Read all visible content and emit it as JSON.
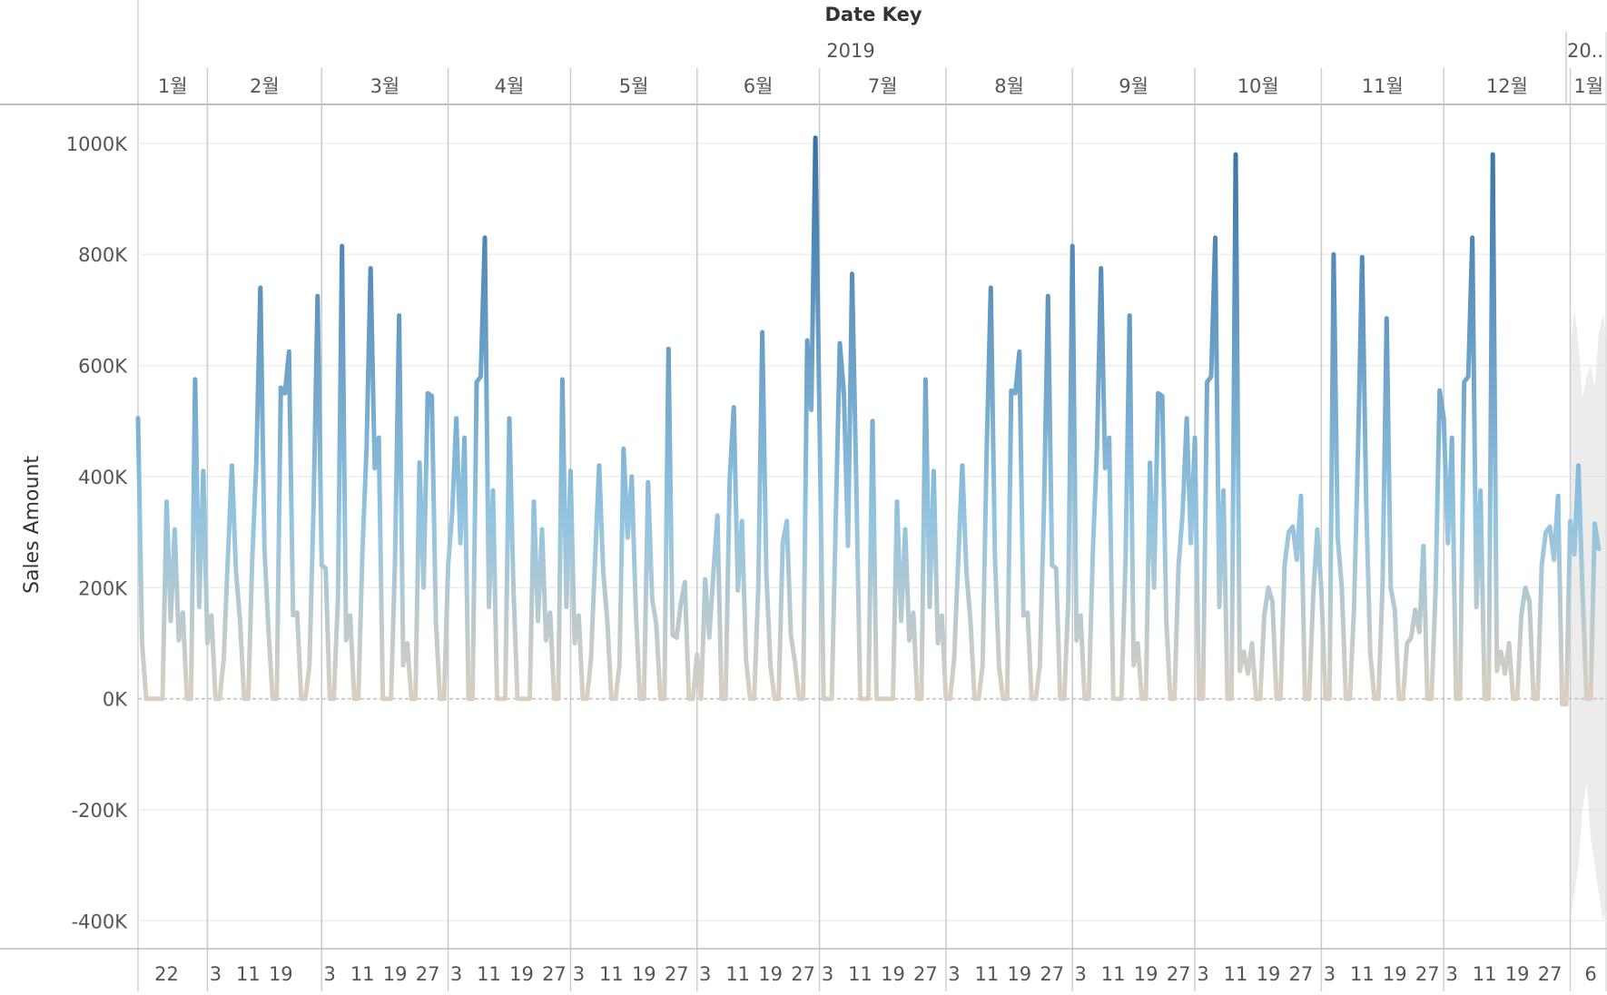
{
  "header": {
    "field_title": "Date Key",
    "year_labels": [
      "2019",
      "20.."
    ],
    "month_labels": [
      "1월",
      "2월",
      "3월",
      "4월",
      "5월",
      "6월",
      "7월",
      "8월",
      "9월",
      "10월",
      "11월",
      "12월",
      "1월"
    ]
  },
  "chart_data": {
    "type": "line",
    "title": "",
    "xlabel": "Date Key",
    "ylabel": "Sales Amount",
    "ylim": [
      -450000,
      1070000
    ],
    "y_ticks": [
      -400000,
      -200000,
      0,
      200000,
      400000,
      600000,
      800000,
      1000000
    ],
    "y_tick_labels": [
      "-400K",
      "-200K",
      "0K",
      "200K",
      "400K",
      "600K",
      "800K",
      "1000K"
    ],
    "x_start": "2019-01-15",
    "x_end": "2020-01-10",
    "month_starts": [
      "2019-02-01",
      "2019-03-01",
      "2019-04-01",
      "2019-05-01",
      "2019-06-01",
      "2019-07-01",
      "2019-08-01",
      "2019-09-01",
      "2019-10-01",
      "2019-11-01",
      "2019-12-01",
      "2020-01-01"
    ],
    "x_ticks": [
      {
        "date": "2019-01-22",
        "label": "22"
      },
      {
        "date": "2019-02-03",
        "label": "3"
      },
      {
        "date": "2019-02-11",
        "label": "11"
      },
      {
        "date": "2019-02-19",
        "label": "19"
      },
      {
        "date": "2019-03-03",
        "label": "3"
      },
      {
        "date": "2019-03-11",
        "label": "11"
      },
      {
        "date": "2019-03-19",
        "label": "19"
      },
      {
        "date": "2019-03-27",
        "label": "27"
      },
      {
        "date": "2019-04-03",
        "label": "3"
      },
      {
        "date": "2019-04-11",
        "label": "11"
      },
      {
        "date": "2019-04-19",
        "label": "19"
      },
      {
        "date": "2019-04-27",
        "label": "27"
      },
      {
        "date": "2019-05-03",
        "label": "3"
      },
      {
        "date": "2019-05-11",
        "label": "11"
      },
      {
        "date": "2019-05-19",
        "label": "19"
      },
      {
        "date": "2019-05-27",
        "label": "27"
      },
      {
        "date": "2019-06-03",
        "label": "3"
      },
      {
        "date": "2019-06-11",
        "label": "11"
      },
      {
        "date": "2019-06-19",
        "label": "19"
      },
      {
        "date": "2019-06-27",
        "label": "27"
      },
      {
        "date": "2019-07-03",
        "label": "3"
      },
      {
        "date": "2019-07-11",
        "label": "11"
      },
      {
        "date": "2019-07-19",
        "label": "19"
      },
      {
        "date": "2019-07-27",
        "label": "27"
      },
      {
        "date": "2019-08-03",
        "label": "3"
      },
      {
        "date": "2019-08-11",
        "label": "11"
      },
      {
        "date": "2019-08-19",
        "label": "19"
      },
      {
        "date": "2019-08-27",
        "label": "27"
      },
      {
        "date": "2019-09-03",
        "label": "3"
      },
      {
        "date": "2019-09-11",
        "label": "11"
      },
      {
        "date": "2019-09-19",
        "label": "19"
      },
      {
        "date": "2019-09-27",
        "label": "27"
      },
      {
        "date": "2019-10-03",
        "label": "3"
      },
      {
        "date": "2019-10-11",
        "label": "11"
      },
      {
        "date": "2019-10-19",
        "label": "19"
      },
      {
        "date": "2019-10-27",
        "label": "27"
      },
      {
        "date": "2019-11-03",
        "label": "3"
      },
      {
        "date": "2019-11-11",
        "label": "11"
      },
      {
        "date": "2019-11-19",
        "label": "19"
      },
      {
        "date": "2019-11-27",
        "label": "27"
      },
      {
        "date": "2019-12-03",
        "label": "3"
      },
      {
        "date": "2019-12-11",
        "label": "11"
      },
      {
        "date": "2019-12-19",
        "label": "19"
      },
      {
        "date": "2019-12-27",
        "label": "27"
      },
      {
        "date": "2020-01-06",
        "label": "6"
      }
    ],
    "color_scale": {
      "low": "#d9cfc0",
      "mid": "#93c4e0",
      "high": "#2f6aa0"
    },
    "zero_line": true,
    "grid": true,
    "forecast_band": {
      "x_start": "2020-01-01",
      "x_end": "2020-01-10",
      "upper": [
        620000,
        700000,
        640000,
        540000,
        580000,
        600000,
        560000,
        660000,
        690000,
        650000
      ],
      "lower": [
        -400000,
        -350000,
        -300000,
        -200000,
        -150000,
        -250000,
        -300000,
        -350000,
        -400000,
        -380000
      ]
    },
    "series": [
      {
        "start": "2019-01-15",
        "step_days": 1,
        "values": [
          505000,
          100000,
          0,
          0,
          0,
          0,
          0,
          355000,
          140000,
          305000,
          105000,
          155000,
          0,
          0,
          575000,
          165000,
          410000,
          100000,
          150000,
          0,
          0,
          70000,
          250000,
          420000,
          230000,
          140000,
          0,
          0,
          250000,
          425000,
          740000,
          270000,
          120000,
          0,
          0,
          560000,
          550000,
          625000,
          150000,
          155000,
          0,
          0,
          60000,
          340000,
          725000,
          240000,
          235000,
          0,
          0,
          180000,
          815000,
          105000,
          150000,
          0,
          0,
          265000,
          450000,
          775000,
          415000,
          470000,
          0,
          0,
          0,
          250000,
          690000,
          60000,
          100000,
          0,
          0,
          425000,
          200000,
          550000,
          545000,
          140000,
          0,
          0,
          240000,
          335000,
          505000,
          280000,
          470000,
          0,
          0,
          570000,
          580000,
          830000,
          165000,
          375000,
          0,
          0,
          0,
          505000,
          200000,
          0,
          0,
          0,
          0,
          355000,
          140000,
          305000,
          105000,
          155000,
          0,
          0,
          575000,
          165000,
          410000,
          100000,
          150000,
          0,
          0,
          70000,
          250000,
          420000,
          230000,
          140000,
          0,
          0,
          60000,
          450000,
          290000,
          400000,
          160000,
          0,
          0,
          390000,
          180000,
          135000,
          0,
          0,
          630000,
          115000,
          110000,
          170000,
          210000,
          0,
          0,
          80000,
          0,
          215000,
          110000,
          225000,
          330000,
          0,
          0,
          395000,
          525000,
          195000,
          320000,
          70000,
          0,
          0,
          200000,
          660000,
          225000,
          60000,
          0,
          0,
          280000,
          320000,
          115000,
          65000,
          0,
          0,
          645000,
          520000,
          1010000,
          505000,
          0,
          0,
          0,
          320000,
          640000,
          550000,
          275000,
          765000,
          400000,
          0,
          0,
          0,
          500000,
          0,
          0,
          0,
          0,
          0,
          355000,
          140000,
          305000,
          105000,
          155000,
          0,
          0,
          575000,
          165000,
          410000,
          100000,
          150000,
          0,
          0,
          70000,
          250000,
          420000,
          230000,
          140000,
          0,
          0,
          60000,
          450000,
          740000,
          260000,
          60000,
          0,
          0,
          555000,
          550000,
          625000,
          150000,
          155000,
          0,
          0,
          60000,
          340000,
          725000,
          240000,
          235000,
          0,
          0,
          180000,
          815000,
          105000,
          150000,
          0,
          0,
          265000,
          450000,
          775000,
          415000,
          470000,
          0,
          0,
          0,
          250000,
          690000,
          60000,
          100000,
          0,
          0,
          425000,
          200000,
          550000,
          545000,
          140000,
          0,
          0,
          240000,
          335000,
          505000,
          280000,
          470000,
          0,
          0,
          570000,
          580000,
          830000,
          165000,
          375000,
          0,
          0,
          980000,
          50000,
          85000,
          45000,
          100000,
          0,
          0,
          150000,
          200000,
          175000,
          0,
          0,
          240000,
          300000,
          310000,
          250000,
          365000,
          0,
          0,
          185000,
          305000,
          195000,
          0,
          0,
          800000,
          290000,
          200000,
          0,
          0,
          160000,
          450000,
          795000,
          350000,
          80000,
          0,
          0,
          205000,
          685000,
          200000,
          160000,
          0,
          0,
          100000,
          110000,
          160000,
          120000,
          275000,
          0,
          0,
          195000,
          555000,
          505000,
          280000,
          470000,
          0,
          0,
          570000,
          580000,
          830000,
          165000,
          375000,
          0,
          0,
          980000,
          50000,
          85000,
          45000,
          100000,
          0,
          0,
          150000,
          200000,
          175000,
          0,
          0,
          240000,
          300000,
          310000,
          250000,
          365000,
          -10000,
          -10000,
          320000,
          260000,
          420000,
          195000,
          0,
          0,
          315000,
          270000
        ]
      }
    ]
  }
}
